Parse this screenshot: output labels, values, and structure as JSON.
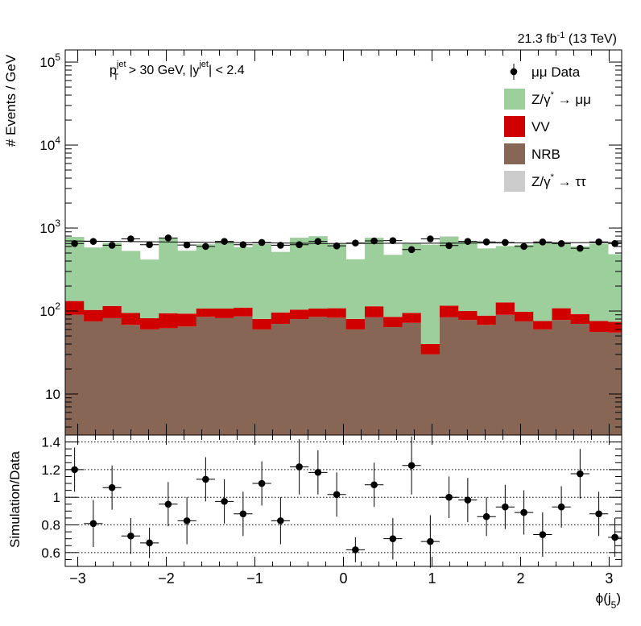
{
  "chart_data": [
    {
      "type": "bar",
      "stacked": true,
      "log_y": true,
      "lumi_label": "21.3 fb",
      "lumi_sup": "-1",
      "lumi_energy": " (13 TeV)",
      "cut_pt": "p",
      "cut_pt_sup": "jet",
      "cut_pt_sub": "T",
      "cut_pt_rest": " > 30 GeV,  |y",
      "cut_y_sup": "jet",
      "cut_y_rest": "| < 2.4",
      "ylabel": "# Events / GeV",
      "ylim": [
        3.2,
        140000
      ],
      "y_ticks": [
        {
          "value": 10,
          "base": "10",
          "exp": ""
        },
        {
          "value": 100,
          "base": "10",
          "exp": "2"
        },
        {
          "value": 1000,
          "base": "10",
          "exp": "3"
        },
        {
          "value": 10000,
          "base": "10",
          "exp": "4"
        },
        {
          "value": 100000,
          "base": "10",
          "exp": "5"
        }
      ],
      "legend_position": "top-right",
      "legend": [
        {
          "label": "μμ Data",
          "kind": "marker",
          "color": "#000000"
        },
        {
          "label": "Z/γ",
          "sup": "*",
          "rest": " → μμ",
          "kind": "box",
          "color": "#9ccf9c"
        },
        {
          "label": "VV",
          "kind": "box",
          "color": "#d10000"
        },
        {
          "label": "NRB",
          "kind": "box",
          "color": "#886655"
        },
        {
          "label": "Z/γ",
          "sup": "*",
          "rest": " → ττ",
          "kind": "box",
          "color": "#cccccc"
        }
      ],
      "bin_edges": [
        -3.1416,
        -2.9302,
        -2.7188,
        -2.5074,
        -2.296,
        -2.0846,
        -1.8732,
        -1.6618,
        -1.4504,
        -1.239,
        -1.0276,
        -0.8162,
        -0.6048,
        -0.3934,
        -0.182,
        0.0294,
        0.2408,
        0.4522,
        0.6636,
        0.875,
        1.0864,
        1.2978,
        1.5092,
        1.7206,
        1.932,
        2.1434,
        2.3548,
        2.5662,
        2.7776,
        2.989,
        3.1416
      ],
      "series": [
        {
          "name": "NRB",
          "color": "#886655",
          "values": [
            90,
            75,
            82,
            68,
            60,
            62,
            65,
            85,
            82,
            86,
            60,
            70,
            80,
            85,
            83,
            60,
            84,
            64,
            72,
            30,
            84,
            78,
            68,
            90,
            75,
            60,
            78,
            70,
            56,
            55
          ]
        },
        {
          "name": "VV",
          "color": "#d10000",
          "values": [
            42,
            28,
            33,
            27,
            22,
            32,
            28,
            22,
            25,
            24,
            20,
            26,
            24,
            22,
            25,
            20,
            30,
            21,
            23,
            10,
            32,
            22,
            20,
            37,
            23,
            16,
            30,
            22,
            20,
            19
          ]
        },
        {
          "name": "Z/γ* → μμ",
          "color": "#9ccf9c",
          "values": [
            650,
            480,
            550,
            435,
            335,
            660,
            440,
            530,
            580,
            480,
            560,
            420,
            660,
            690,
            530,
            340,
            650,
            390,
            550,
            590,
            670,
            590,
            480,
            480,
            530,
            580,
            540,
            510,
            570,
            410
          ]
        },
        {
          "name": "Z/γ* → ττ",
          "color": "#cccccc",
          "values": [
            0,
            0,
            0,
            0,
            0,
            0,
            0,
            0,
            0,
            0,
            0,
            0,
            0,
            0,
            0,
            0,
            0,
            0,
            0,
            0,
            10,
            0,
            0,
            0,
            0,
            0,
            0,
            0,
            0,
            0
          ]
        }
      ],
      "data_points": {
        "name": "μμ Data",
        "values": [
          650,
          690,
          620,
          740,
          630,
          760,
          625,
          600,
          690,
          630,
          670,
          620,
          630,
          690,
          610,
          660,
          700,
          705,
          550,
          740,
          615,
          690,
          680,
          670,
          600,
          680,
          650,
          570,
          680,
          650
        ]
      },
      "total_mc_line": {
        "x": [
          -3.1416,
          -0.182,
          3.1416
        ],
        "y": [
          700,
          650,
          670
        ]
      }
    },
    {
      "type": "scatter",
      "ylabel": "Simulation/Data",
      "xlabel": "ϕ(j",
      "xlabel_sub": "5",
      "xlabel_close": ")",
      "xlim": [
        -3.1416,
        3.1416
      ],
      "ylim": [
        0.5,
        1.45
      ],
      "x_ticks": [
        {
          "value": -3,
          "label": "−3"
        },
        {
          "value": -2,
          "label": "−2"
        },
        {
          "value": -1,
          "label": "−1"
        },
        {
          "value": 0,
          "label": "0"
        },
        {
          "value": 1,
          "label": "1"
        },
        {
          "value": 2,
          "label": "2"
        },
        {
          "value": 3,
          "label": "3"
        }
      ],
      "y_ticks": [
        {
          "value": 0.6,
          "label": "0.6"
        },
        {
          "value": 0.8,
          "label": "0.8"
        },
        {
          "value": 1.0,
          "label": "1"
        },
        {
          "value": 1.2,
          "label": "1.2"
        },
        {
          "value": 1.4,
          "label": "1.4"
        }
      ],
      "grid_y": true,
      "points": [
        {
          "y": 1.2,
          "err": 0.16
        },
        {
          "y": 0.81,
          "err": 0.17
        },
        {
          "y": 1.07,
          "err": 0.16
        },
        {
          "y": 0.72,
          "err": 0.13
        },
        {
          "y": 0.67,
          "err": 0.11
        },
        {
          "y": 0.95,
          "err": 0.16
        },
        {
          "y": 0.83,
          "err": 0.17
        },
        {
          "y": 1.13,
          "err": 0.16
        },
        {
          "y": 0.97,
          "err": 0.16
        },
        {
          "y": 0.88,
          "err": 0.16
        },
        {
          "y": 1.1,
          "err": 0.16
        },
        {
          "y": 0.83,
          "err": 0.17
        },
        {
          "y": 1.22,
          "err": 0.2
        },
        {
          "y": 1.18,
          "err": 0.16
        },
        {
          "y": 1.02,
          "err": 0.16
        },
        {
          "y": 0.62,
          "err": 0.09
        },
        {
          "y": 1.09,
          "err": 0.16
        },
        {
          "y": 0.7,
          "err": 0.15
        },
        {
          "y": 1.23,
          "err": 0.21
        },
        {
          "y": 0.68,
          "err": 0.19
        },
        {
          "y": 1.0,
          "err": 0.15
        },
        {
          "y": 0.98,
          "err": 0.16
        },
        {
          "y": 0.86,
          "err": 0.14
        },
        {
          "y": 0.93,
          "err": 0.16
        },
        {
          "y": 0.89,
          "err": 0.16
        },
        {
          "y": 0.73,
          "err": 0.16
        },
        {
          "y": 0.93,
          "err": 0.15
        },
        {
          "y": 1.17,
          "err": 0.18
        },
        {
          "y": 0.88,
          "err": 0.16
        },
        {
          "y": 0.71,
          "err": 0.14
        }
      ]
    }
  ]
}
